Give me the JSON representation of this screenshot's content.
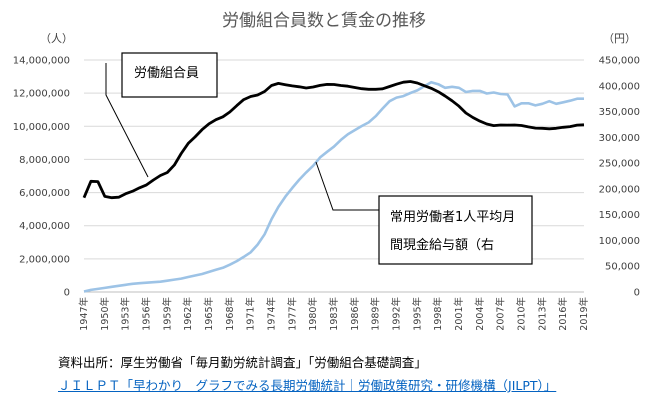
{
  "chart_data": {
    "type": "line",
    "title": "労働組合員数と賃金の推移",
    "y_left_unit": "（人）",
    "y_right_unit": "（円）",
    "y_left_range": [
      0,
      14000000
    ],
    "y_right_range": [
      0,
      450000
    ],
    "y_left_ticks": [
      "0",
      "2,000,000",
      "4,000,000",
      "6,000,000",
      "8,000,000",
      "10,000,000",
      "12,000,000",
      "14,000,000"
    ],
    "y_right_ticks": [
      "0",
      "50,000",
      "100,000",
      "150,000",
      "200,000",
      "250,000",
      "300,000",
      "350,000",
      "400,000",
      "450,000"
    ],
    "x_tick_labels": [
      "1947年",
      "1950年",
      "1953年",
      "1956年",
      "1959年",
      "1962年",
      "1965年",
      "1968年",
      "1971年",
      "1974年",
      "1977年",
      "1980年",
      "1983年",
      "1986年",
      "1989年",
      "1992年",
      "1995年",
      "1998年",
      "2001年",
      "2004年",
      "2007年",
      "2010年",
      "2013年",
      "2016年",
      "2019年"
    ],
    "x": [
      1947,
      1948,
      1949,
      1950,
      1951,
      1952,
      1953,
      1954,
      1955,
      1956,
      1957,
      1958,
      1959,
      1960,
      1961,
      1962,
      1963,
      1964,
      1965,
      1966,
      1967,
      1968,
      1969,
      1970,
      1971,
      1972,
      1973,
      1974,
      1975,
      1976,
      1977,
      1978,
      1979,
      1980,
      1981,
      1982,
      1983,
      1984,
      1985,
      1986,
      1987,
      1988,
      1989,
      1990,
      1991,
      1992,
      1993,
      1994,
      1995,
      1996,
      1997,
      1998,
      1999,
      2000,
      2001,
      2002,
      2003,
      2004,
      2005,
      2006,
      2007,
      2008,
      2009,
      2010,
      2011,
      2012,
      2013,
      2014,
      2015,
      2016,
      2017,
      2018,
      2019
    ],
    "series": [
      {
        "name": "労働組合員",
        "axis": "left",
        "color": "#000000",
        "values": [
          5690000,
          6680000,
          6660000,
          5770000,
          5690000,
          5720000,
          5930000,
          6080000,
          6290000,
          6460000,
          6760000,
          7030000,
          7210000,
          7660000,
          8360000,
          8970000,
          9360000,
          9800000,
          10150000,
          10400000,
          10570000,
          10860000,
          11250000,
          11610000,
          11800000,
          11890000,
          12100000,
          12460000,
          12590000,
          12510000,
          12440000,
          12380000,
          12310000,
          12370000,
          12470000,
          12530000,
          12520000,
          12460000,
          12420000,
          12340000,
          12270000,
          12230000,
          12230000,
          12260000,
          12400000,
          12540000,
          12660000,
          12700000,
          12610000,
          12450000,
          12290000,
          12090000,
          11830000,
          11540000,
          11210000,
          10800000,
          10530000,
          10310000,
          10140000,
          10040000,
          10080000,
          10070000,
          10080000,
          10050000,
          9960000,
          9890000,
          9880000,
          9850000,
          9880000,
          9940000,
          9980000,
          10070000,
          10090000
        ]
      },
      {
        "name": "常用労働者1人平均月間現金給与額（右",
        "axis": "right",
        "color": "#9dc3e6",
        "values": [
          1000,
          4000,
          6000,
          8000,
          10000,
          12000,
          14000,
          16000,
          17000,
          18000,
          19000,
          20000,
          22000,
          24000,
          26000,
          29000,
          32000,
          35000,
          39000,
          43000,
          47000,
          53000,
          60000,
          68000,
          77000,
          92000,
          112000,
          141000,
          165000,
          185000,
          202000,
          218000,
          232000,
          245000,
          261000,
          272000,
          282000,
          295000,
          306000,
          314000,
          322000,
          329000,
          341000,
          356000,
          370000,
          377000,
          380000,
          386000,
          391000,
          399000,
          407000,
          403000,
          396000,
          398000,
          396000,
          388000,
          390000,
          390000,
          385000,
          387000,
          384000,
          383000,
          360000,
          366000,
          366000,
          362000,
          365000,
          370000,
          365000,
          368000,
          371000,
          375000,
          375000
        ]
      }
    ],
    "annotations": [
      {
        "lines": [
          "労働組合員"
        ],
        "series": "労働組合員"
      },
      {
        "lines": [
          "常用労働者1人平均月",
          "間現金給与額（右"
        ],
        "series": "常用労働者1人平均月間現金給与額（右"
      }
    ],
    "grid": true,
    "legend": "callout boxes"
  },
  "source": {
    "text": "資料出所：厚生労働省「毎月勤労統計調査」「労働組合基礎調査」",
    "link": "ＪＩＬＰＴ「早わかり　グラフでみる長期労働統計｜労働政策研究・研修機構（JILPT）」"
  }
}
